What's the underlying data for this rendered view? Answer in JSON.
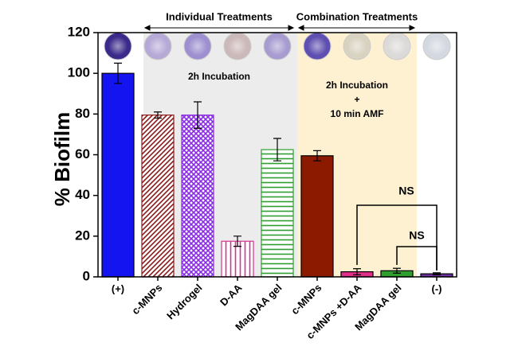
{
  "chart_data": {
    "type": "bar",
    "y_label": "% Biofilm",
    "categories": [
      "(+)",
      "c-MNPs",
      "Hydrogel",
      "D-AA",
      "MagDAA gel",
      "c-MNPs",
      "c-MNPs +D-AA",
      "MagDAA gel",
      "(-)"
    ],
    "values": [
      100,
      79.5,
      79.5,
      17.5,
      62.5,
      59.5,
      2.5,
      3,
      1.5
    ],
    "errors": [
      5,
      1.5,
      6.5,
      2.5,
      5.5,
      2.5,
      1.5,
      1.2,
      0.5
    ],
    "colors": [
      "#1414f0",
      "#8b1a1a",
      "#8a2be2",
      "#d6338f",
      "#2e9e2e",
      "#8b1a00",
      "#e0308a",
      "#2e9e2e",
      "#7030a0"
    ],
    "patterns": [
      "solid",
      "diagonal",
      "crosshatch",
      "vertical",
      "horizontal",
      "solid",
      "solid",
      "solid",
      "solid"
    ],
    "ylim": [
      0,
      120
    ],
    "yticks": [
      0,
      20,
      40,
      60,
      80,
      100,
      120
    ],
    "group_labels": [
      "Individual Treatments",
      "Combination Treatments"
    ],
    "annotations": [
      "2h Incubation",
      "2h Incubation",
      "+",
      "10 min AMF",
      "NS",
      "NS"
    ]
  }
}
